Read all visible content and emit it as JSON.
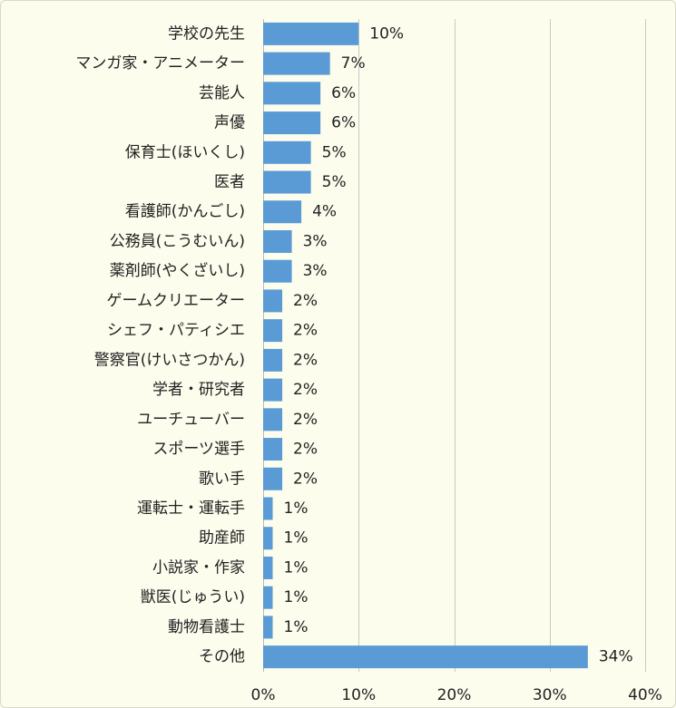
{
  "chart_data": {
    "type": "bar",
    "orientation": "horizontal",
    "categories": [
      "学校の先生",
      "マンガ家・アニメーター",
      "芸能人",
      "声優",
      "保育士(ほいくし)",
      "医者",
      "看護師(かんごし)",
      "公務員(こうむいん)",
      "薬剤師(やくざいし)",
      "ゲームクリエーター",
      "シェフ・パティシエ",
      "警察官(けいさつかん)",
      "学者・研究者",
      "ユーチューバー",
      "スポーツ選手",
      "歌い手",
      "運転士・運転手",
      "助産師",
      "小説家・作家",
      "獣医(じゅうい)",
      "動物看護士",
      "その他"
    ],
    "values": [
      10,
      7,
      6,
      6,
      5,
      5,
      4,
      3,
      3,
      2,
      2,
      2,
      2,
      2,
      2,
      2,
      1,
      1,
      1,
      1,
      1,
      34
    ],
    "data_labels": [
      "10%",
      "7%",
      "6%",
      "6%",
      "5%",
      "5%",
      "4%",
      "3%",
      "3%",
      "2%",
      "2%",
      "2%",
      "2%",
      "2%",
      "2%",
      "2%",
      "1%",
      "1%",
      "1%",
      "1%",
      "1%",
      "34%"
    ],
    "xlim": [
      0,
      40
    ],
    "x_ticks": [
      0,
      10,
      20,
      30,
      40
    ],
    "x_tick_labels": [
      "0%",
      "10%",
      "20%",
      "30%",
      "40%"
    ],
    "title": "",
    "xlabel": "",
    "ylabel": "",
    "grid": true,
    "legend": "none",
    "colors": {
      "bar": "#5b9bd5",
      "background": "#fdfdee",
      "grid": "#c9c9c9",
      "text": "#222222"
    }
  }
}
